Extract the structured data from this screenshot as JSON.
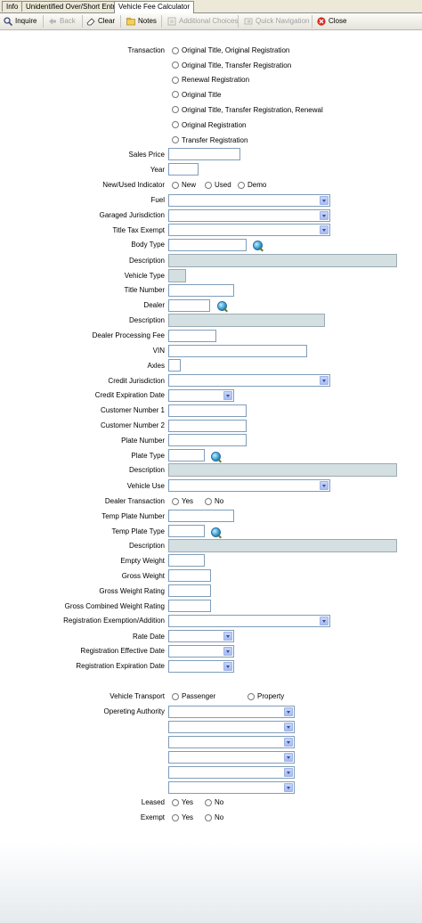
{
  "tabs": [
    "Info",
    "Unidentified Over/Short Entry",
    "Vehicle Fee Calculator"
  ],
  "toolbar": {
    "inquire": "Inquire",
    "back": "Back",
    "clear": "Clear",
    "notes": "Notes",
    "additional_choices": "Additional Choices",
    "quick_navigation": "Quick Navigation",
    "close": "Close"
  },
  "form": {
    "transaction_label": "Transaction",
    "transaction_options": [
      "Original Title, Original Registration",
      "Original Title, Transfer Registration",
      "Renewal Registration",
      "Original Title",
      "Original Title, Transfer Registration, Renewal",
      "Original Registration",
      "Transfer Registration"
    ],
    "sales_price": "Sales Price",
    "year": "Year",
    "new_used_indicator": "New/Used Indicator",
    "new_used_options": [
      "New",
      "Used",
      "Demo"
    ],
    "fuel": "Fuel",
    "garaged_jurisdiction": "Garaged Jurisdiction",
    "title_tax_exempt": "Title Tax Exempt",
    "body_type": "Body Type",
    "description": "Description",
    "vehicle_type": "Vehicle Type",
    "title_number": "Title Number",
    "dealer": "Dealer",
    "dealer_processing_fee": "Dealer Processing Fee",
    "vin": "VIN",
    "axles": "Axles",
    "credit_jurisdiction": "Credit Jurisdiction",
    "credit_expiration_date": "Credit Expiration Date",
    "customer_number_1": "Customer Number 1",
    "customer_number_2": "Customer Number 2",
    "plate_number": "Plate Number",
    "plate_type": "Plate Type",
    "vehicle_use": "Vehicle Use",
    "dealer_transaction": "Dealer Transaction",
    "yes": "Yes",
    "no": "No",
    "temp_plate_number": "Temp Plate Number",
    "temp_plate_type": "Temp Plate Type",
    "empty_weight": "Empty Weight",
    "gross_weight": "Gross Weight",
    "gross_weight_rating": "Gross Weight Rating",
    "gross_combined_weight_rating": "Gross Combined Weight Rating",
    "registration_exemption": "Registration Exemption/Addition",
    "rate_date": "Rate Date",
    "registration_effective_date": "Registration Effective Date",
    "registration_expiration_date": "Registration Expiration Date",
    "vehicle_transport": "Vehicle Transport",
    "transport_options": [
      "Passenger",
      "Property"
    ],
    "opereting_authority": "Opereting Authority",
    "leased": "Leased",
    "exempt": "Exempt"
  }
}
